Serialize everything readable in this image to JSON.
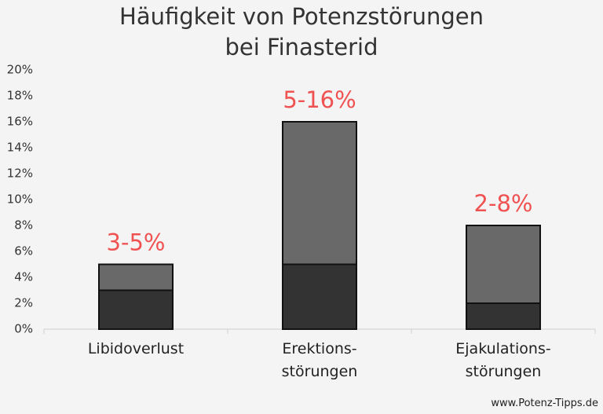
{
  "chart_data": {
    "type": "bar",
    "stacked": true,
    "title": "Häufigkeit von Potenzstörungen\nbei Finasterid",
    "categories": [
      "Libidoverlust",
      "Erektions-\nstörungen",
      "Ejakulations-\nstörungen"
    ],
    "series": [
      {
        "color": "#333333",
        "values": [
          3,
          5,
          2
        ]
      },
      {
        "color": "#696969",
        "values": [
          2,
          11,
          6
        ]
      }
    ],
    "data_labels": [
      "3-5%",
      "5-16%",
      "2-8%"
    ],
    "data_label_color": "#f05252",
    "ylim": [
      0,
      20
    ],
    "yticks": [
      {
        "value": 0,
        "label": "0%"
      },
      {
        "value": 2,
        "label": "2%"
      },
      {
        "value": 4,
        "label": "4%"
      },
      {
        "value": 6,
        "label": "6%"
      },
      {
        "value": 8,
        "label": "8%"
      },
      {
        "value": 10,
        "label": "10%"
      },
      {
        "value": 12,
        "label": "12%"
      },
      {
        "value": 14,
        "label": "14%"
      },
      {
        "value": 16,
        "label": "16%"
      },
      {
        "value": 18,
        "label": "18%"
      },
      {
        "value": 20,
        "label": "20%"
      }
    ],
    "grid": false,
    "source": "www.Potenz-Tipps.de"
  }
}
